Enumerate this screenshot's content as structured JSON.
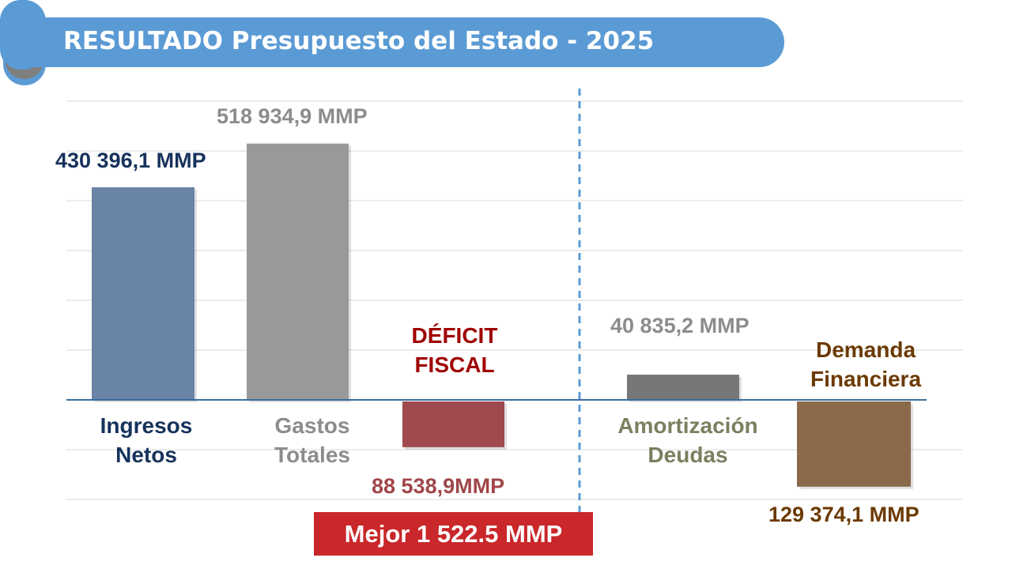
{
  "header": {
    "title": "RESULTADO Presupuesto del Estado - 2025"
  },
  "chart_data": {
    "type": "bar",
    "title": "RESULTADO Presupuesto del Estado - 2025",
    "unit": "MMP",
    "grid": true,
    "categories": [
      "Ingresos Netos",
      "Gastos Totales",
      "DÉFICIT FISCAL",
      "Amortización Deudas",
      "Demanda Financiera"
    ],
    "values": [
      430396.1,
      518934.9,
      -88538.9,
      40835.2,
      -129374.1
    ],
    "value_labels": [
      "430 396,1 MMP",
      "518 934,9 MMP",
      "88 538,9MMP",
      "40 835,2 MMP",
      "129 374,1 MMP"
    ],
    "colors": [
      "#6a84a6",
      "#999999",
      "#9e4a4e",
      "#777777",
      "#8a6a4b"
    ],
    "label_colors": [
      "#16325c",
      "#8c8c8c",
      "#a00000",
      "#7a8060",
      "#6b3a00"
    ],
    "category_lines": [
      [
        "Ingresos",
        "Netos"
      ],
      [
        "Gastos",
        "Totales"
      ],
      [
        "DÉFICIT",
        "FISCAL"
      ],
      [
        "Amortización",
        "Deudas"
      ],
      [
        "Demanda",
        "Financiera"
      ]
    ],
    "annotation": "Mejor 1 522.5 MMP"
  }
}
